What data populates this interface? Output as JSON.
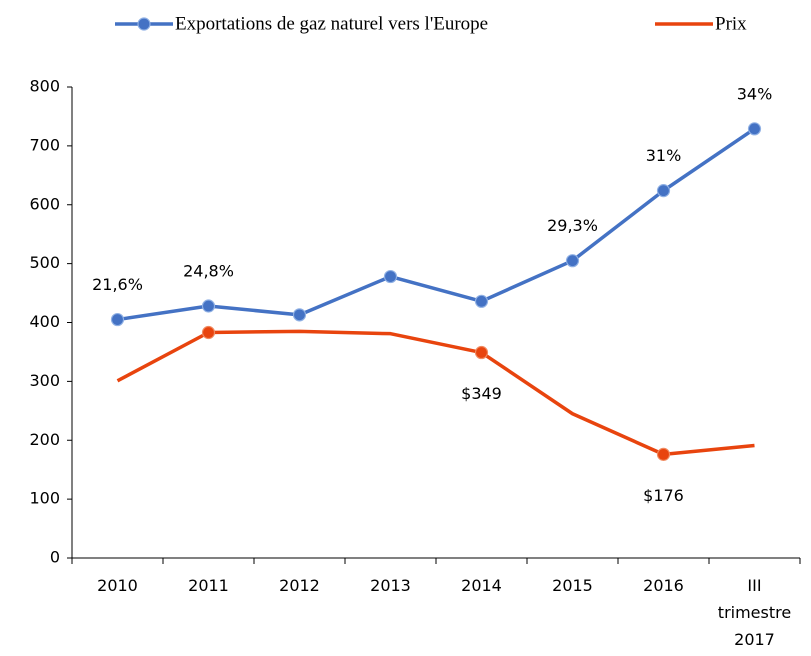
{
  "chart_data": {
    "type": "line",
    "categories": [
      "2010",
      "2011",
      "2012",
      "2013",
      "2014",
      "2015",
      "2016",
      "III trimestre 2017"
    ],
    "series": [
      {
        "name": "Exportations de gaz naturel vers l'Europe",
        "color": "#4472c4",
        "values": [
          405,
          428,
          413,
          478,
          436,
          505,
          624,
          729
        ],
        "marker_indices": [
          0,
          1,
          2,
          3,
          4,
          5,
          6,
          7
        ]
      },
      {
        "name": "Prix",
        "color": "#e8440e",
        "values": [
          301,
          383,
          385,
          381,
          349,
          245,
          176,
          191
        ],
        "marker_indices": [
          1,
          4,
          6
        ],
        "value_labels": [
          null,
          null,
          null,
          null,
          "$349",
          null,
          "$176",
          null
        ]
      }
    ],
    "annotations": [
      {
        "category": "2010",
        "text": "21,6%"
      },
      {
        "category": "2011",
        "text": "24,8%"
      },
      {
        "category": "2015",
        "text": "29,3%"
      },
      {
        "category": "2016",
        "text": "31%"
      },
      {
        "category": "III trimestre 2017",
        "text": "34%"
      }
    ],
    "ylim": [
      0,
      800
    ],
    "yticks": [
      0,
      100,
      200,
      300,
      400,
      500,
      600,
      700,
      800
    ],
    "grid": false,
    "legend": "top"
  }
}
